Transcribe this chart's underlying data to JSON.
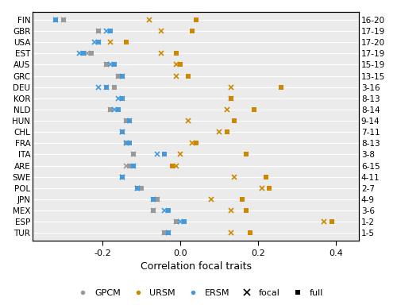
{
  "countries": [
    "FIN",
    "GBR",
    "USA",
    "EST",
    "AUS",
    "GRC",
    "DEU",
    "KOR",
    "NLD",
    "HUN",
    "CHL",
    "FRA",
    "ITA",
    "ARE",
    "SWE",
    "POL",
    "JPN",
    "MEX",
    "ESP",
    "TUR"
  ],
  "right_labels": [
    "16-20",
    "17-19",
    "17-20",
    "17-19",
    "15-19",
    "13-15",
    "3-16",
    "8-13",
    "8-14",
    "9-14",
    "7-11",
    "8-13",
    "3-8",
    "6-15",
    "4-11",
    "2-7",
    "4-9",
    "3-6",
    "1-2",
    "1-5"
  ],
  "GPCM_focal": [
    -0.3,
    -0.21,
    -0.21,
    -0.24,
    -0.19,
    -0.16,
    -0.19,
    -0.15,
    -0.18,
    -0.14,
    -0.15,
    -0.14,
    -0.12,
    -0.14,
    -0.15,
    -0.11,
    -0.06,
    -0.07,
    -0.01,
    -0.04
  ],
  "GPCM_full": [
    -0.3,
    -0.21,
    -0.21,
    -0.23,
    -0.19,
    -0.16,
    -0.17,
    -0.15,
    -0.18,
    -0.14,
    -0.15,
    -0.14,
    -0.12,
    -0.13,
    -0.15,
    -0.1,
    -0.06,
    -0.07,
    -0.01,
    -0.04
  ],
  "URSM_focal": [
    -0.08,
    -0.05,
    -0.18,
    -0.05,
    -0.01,
    -0.01,
    0.13,
    0.13,
    0.12,
    0.02,
    0.1,
    0.03,
    0.0,
    -0.01,
    0.14,
    0.21,
    0.08,
    0.13,
    0.37,
    0.13
  ],
  "URSM_full": [
    0.04,
    0.03,
    -0.14,
    -0.01,
    0.0,
    0.02,
    0.26,
    0.13,
    0.19,
    0.14,
    0.12,
    0.04,
    0.17,
    -0.02,
    0.22,
    0.23,
    0.16,
    0.17,
    0.39,
    0.18
  ],
  "ERSM_focal": [
    -0.32,
    -0.19,
    -0.22,
    -0.26,
    -0.18,
    -0.15,
    -0.21,
    -0.16,
    -0.17,
    -0.13,
    -0.15,
    -0.14,
    -0.06,
    -0.12,
    -0.15,
    -0.11,
    -0.07,
    -0.04,
    0.0,
    -0.03
  ],
  "ERSM_full": [
    -0.32,
    -0.18,
    -0.21,
    -0.25,
    -0.17,
    -0.15,
    -0.19,
    -0.15,
    -0.16,
    -0.13,
    -0.15,
    -0.13,
    -0.04,
    -0.12,
    -0.15,
    -0.11,
    -0.07,
    -0.03,
    0.01,
    -0.03
  ],
  "color_GPCM": "#999999",
  "color_URSM": "#CC8800",
  "color_ERSM": "#4499DD",
  "bg_color": "#EBEBEB",
  "xlabel": "Correlation focal traits",
  "xlim": [
    -0.38,
    0.46
  ],
  "xticks": [
    -0.2,
    0.0,
    0.2,
    0.4
  ],
  "xticklabels": [
    "-0.2",
    "0.0",
    "0.2",
    "0.4"
  ]
}
